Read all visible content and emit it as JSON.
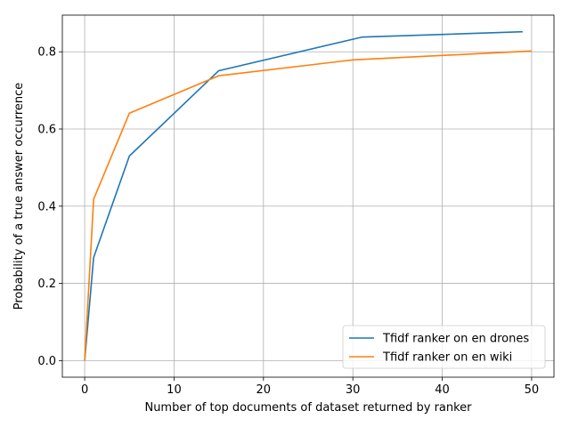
{
  "chart_data": {
    "type": "line",
    "title": "",
    "xlabel": "Number of top documents of dataset returned by ranker",
    "ylabel": "Probability of a true answer occurrence",
    "xlim": [
      -2.5,
      52.5
    ],
    "ylim": [
      -0.043,
      0.895
    ],
    "xticks": [
      0,
      10,
      20,
      30,
      40,
      50
    ],
    "yticks": [
      0.0,
      0.2,
      0.4,
      0.6,
      0.8
    ],
    "xtick_labels": [
      "0",
      "10",
      "20",
      "30",
      "40",
      "50"
    ],
    "ytick_labels": [
      "0.0",
      "0.2",
      "0.4",
      "0.6",
      "0.8"
    ],
    "grid": true,
    "legend_position": "bottom-right",
    "series": [
      {
        "name": "Tfidf ranker on en drones",
        "color": "#1f77b4",
        "x": [
          0,
          1,
          5,
          15,
          31,
          49
        ],
        "y": [
          0.0,
          0.267,
          0.53,
          0.751,
          0.838,
          0.852
        ]
      },
      {
        "name": "Tfidf ranker on en wiki",
        "color": "#ff7f0e",
        "x": [
          0,
          1,
          5,
          15,
          30,
          50
        ],
        "y": [
          0.0,
          0.418,
          0.641,
          0.738,
          0.779,
          0.802
        ]
      }
    ]
  }
}
